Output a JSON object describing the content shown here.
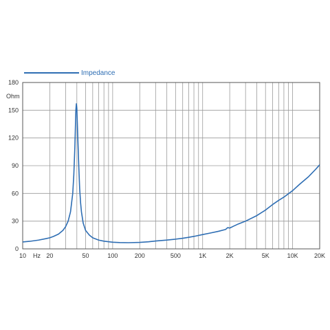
{
  "chart_data": {
    "type": "line",
    "x_scale": "log",
    "xlim": [
      10,
      20000
    ],
    "ylim": [
      0,
      180
    ],
    "yunit": "Ohm",
    "xunit": "Hz",
    "grid": true,
    "legend_position": "top-left",
    "y_ticks": [
      0,
      30,
      60,
      90,
      120,
      150,
      180
    ],
    "x_tick_labels": [
      {
        "value": 10,
        "label": "10"
      },
      {
        "value": 20,
        "label": "20"
      },
      {
        "value": 50,
        "label": "50"
      },
      {
        "value": 100,
        "label": "100"
      },
      {
        "value": 200,
        "label": "200"
      },
      {
        "value": 500,
        "label": "500"
      },
      {
        "value": 1000,
        "label": "1K"
      },
      {
        "value": 2000,
        "label": "2K"
      },
      {
        "value": 5000,
        "label": "5K"
      },
      {
        "value": 10000,
        "label": "10K"
      },
      {
        "value": 20000,
        "label": "20K"
      }
    ],
    "series": [
      {
        "name": "Impedance",
        "color": "#2d6db3",
        "x": [
          10,
          12,
          15,
          18,
          20,
          22,
          25,
          28,
          30,
          32,
          34,
          36,
          37,
          38,
          38.5,
          39,
          39.5,
          40,
          41,
          42,
          43,
          44,
          45,
          47,
          50,
          55,
          60,
          70,
          80,
          100,
          120,
          150,
          200,
          250,
          300,
          400,
          500,
          600,
          700,
          800,
          1000,
          1200,
          1500,
          1800,
          1900,
          2000,
          2200,
          2500,
          3000,
          4000,
          5000,
          6000,
          7000,
          8000,
          10000,
          12000,
          15000,
          18000,
          20000
        ],
        "y": [
          7.5,
          8.2,
          9.5,
          11,
          12,
          13.5,
          16,
          20,
          24,
          30,
          40,
          60,
          80,
          110,
          130,
          150,
          157,
          152,
          120,
          90,
          65,
          50,
          40,
          28,
          20,
          15,
          12,
          9.5,
          8.3,
          7.2,
          6.8,
          6.7,
          7,
          7.7,
          8.5,
          9.5,
          10.5,
          11.5,
          12.5,
          13.5,
          15.5,
          17,
          19,
          21,
          23,
          22.5,
          24.5,
          27,
          30,
          36,
          42,
          48,
          52.5,
          56,
          63,
          70,
          78,
          86,
          91
        ]
      }
    ]
  }
}
